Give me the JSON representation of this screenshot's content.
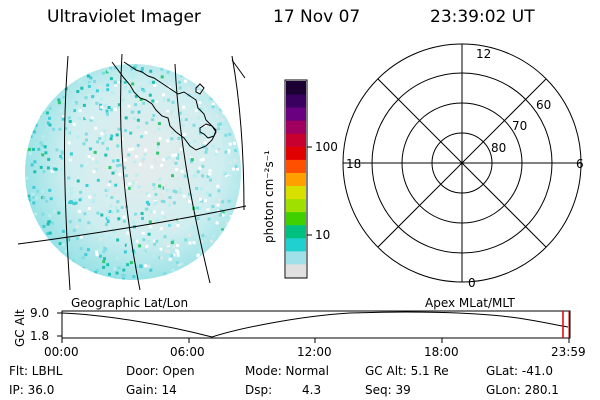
{
  "header": {
    "instrument": "Ultraviolet Imager",
    "date": "17 Nov 07",
    "time": "23:39:02 UT"
  },
  "colorbar": {
    "unit_label": "photon cm⁻²s⁻¹",
    "ticks": [
      "100",
      "10"
    ],
    "colors": [
      "#1a0033",
      "#3a0060",
      "#6a0080",
      "#a00060",
      "#c80030",
      "#e00000",
      "#ff5000",
      "#ffa000",
      "#d8e000",
      "#a0e000",
      "#40d000",
      "#00c080",
      "#20d0d0",
      "#a0e0e8",
      "#e0e0e0"
    ]
  },
  "polar_plot": {
    "mlt_labels": {
      "top": "12",
      "left": "18",
      "right": "6",
      "bottom": "0"
    },
    "lat_labels": [
      "60",
      "70",
      "80"
    ]
  },
  "panel_labels": {
    "left": "Geographic Lat/Lon",
    "right": "Apex MLat/MLT"
  },
  "altitude_plot": {
    "ylabel": "GC Alt",
    "yticks": [
      "9.0",
      "1.8"
    ],
    "xticks": [
      "00:00",
      "06:00",
      "12:00",
      "18:00",
      "23:59"
    ]
  },
  "footer": {
    "filter": "Flt: LBHL",
    "door": "Door: Open",
    "mode": "Mode: Normal",
    "gc_alt": "GC Alt: 5.1 Re",
    "glat": "GLat: -41.0",
    "ip": "IP: 36.0",
    "gain": "Gain: 14",
    "dsp_label": "Dsp:",
    "dsp_value": "4.3",
    "seq": "Seq: 39",
    "glon": "GLon: 280.1"
  }
}
